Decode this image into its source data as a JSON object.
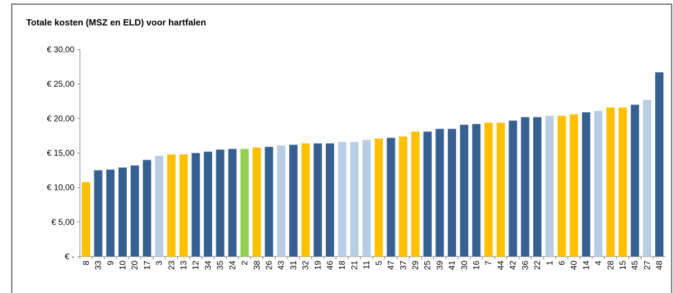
{
  "chart_data": {
    "type": "bar",
    "title": "Totale kosten (MSZ en ELD) voor hartfalen",
    "categories": [
      "8",
      "33",
      "9",
      "10",
      "20",
      "17",
      "3",
      "23",
      "13",
      "12",
      "34",
      "35",
      "24",
      "2",
      "38",
      "26",
      "43",
      "31",
      "32",
      "19",
      "46",
      "18",
      "21",
      "11",
      "5",
      "47",
      "37",
      "29",
      "25",
      "39",
      "41",
      "30",
      "16",
      "7",
      "44",
      "42",
      "36",
      "22",
      "1",
      "6",
      "40",
      "14",
      "4",
      "28",
      "15",
      "45",
      "27",
      "48"
    ],
    "values": [
      10.8,
      12.5,
      12.6,
      12.9,
      13.2,
      14.0,
      14.6,
      14.8,
      14.8,
      15.0,
      15.2,
      15.5,
      15.6,
      15.6,
      15.8,
      15.9,
      16.1,
      16.2,
      16.4,
      16.4,
      16.4,
      16.6,
      16.6,
      16.9,
      17.1,
      17.2,
      17.4,
      18.1,
      18.1,
      18.5,
      18.5,
      19.1,
      19.2,
      19.4,
      19.4,
      19.7,
      20.2,
      20.2,
      20.4,
      20.4,
      20.6,
      20.9,
      21.1,
      21.6,
      21.6,
      22.0,
      22.7,
      26.7
    ],
    "colors": [
      "#ffc000",
      "#376092",
      "#376092",
      "#376092",
      "#376092",
      "#376092",
      "#b9cde5",
      "#ffc000",
      "#ffc000",
      "#376092",
      "#376092",
      "#376092",
      "#376092",
      "#92d050",
      "#ffc000",
      "#376092",
      "#b9cde5",
      "#376092",
      "#ffc000",
      "#376092",
      "#376092",
      "#b9cde5",
      "#b9cde5",
      "#b9cde5",
      "#ffc000",
      "#376092",
      "#ffc000",
      "#ffc000",
      "#376092",
      "#376092",
      "#376092",
      "#376092",
      "#376092",
      "#ffc000",
      "#ffc000",
      "#376092",
      "#376092",
      "#376092",
      "#b9cde5",
      "#ffc000",
      "#ffc000",
      "#376092",
      "#b9cde5",
      "#ffc000",
      "#ffc000",
      "#376092",
      "#b9cde5",
      "#376092"
    ],
    "ylim": [
      0,
      30
    ],
    "yticks": [
      {
        "value": 0,
        "label": "€ -"
      },
      {
        "value": 5,
        "label": "€ 5,00"
      },
      {
        "value": 10,
        "label": "€ 10,00"
      },
      {
        "value": 15,
        "label": "€ 15,00"
      },
      {
        "value": 20,
        "label": "€ 20,00"
      },
      {
        "value": 25,
        "label": "€ 25,00"
      },
      {
        "value": 30,
        "label": "€ 30,00"
      }
    ]
  }
}
